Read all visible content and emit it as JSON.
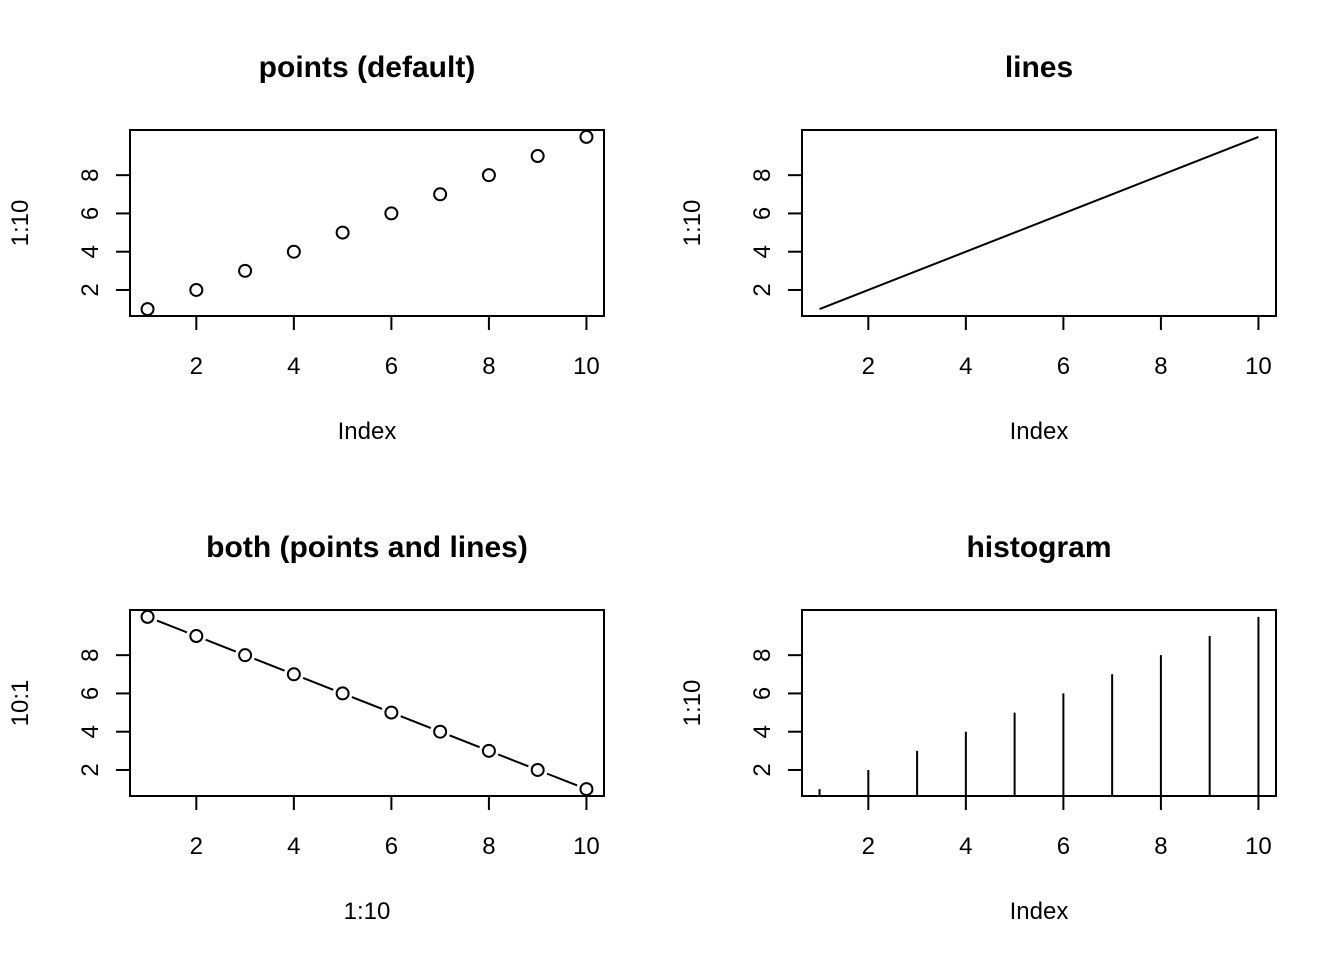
{
  "chart_data": [
    {
      "type": "scatter",
      "title": "points (default)",
      "xlabel": "Index",
      "ylabel": "1:10",
      "x": [
        1,
        2,
        3,
        4,
        5,
        6,
        7,
        8,
        9,
        10
      ],
      "y": [
        1,
        2,
        3,
        4,
        5,
        6,
        7,
        8,
        9,
        10
      ],
      "xlim": [
        0.64,
        10.36
      ],
      "ylim": [
        0.64,
        10.36
      ],
      "xticks": [
        2,
        4,
        6,
        8,
        10
      ],
      "yticks": [
        2,
        4,
        6,
        8
      ],
      "style": "points",
      "grid": false
    },
    {
      "type": "line",
      "title": "lines",
      "xlabel": "Index",
      "ylabel": "1:10",
      "x": [
        1,
        2,
        3,
        4,
        5,
        6,
        7,
        8,
        9,
        10
      ],
      "y": [
        1,
        2,
        3,
        4,
        5,
        6,
        7,
        8,
        9,
        10
      ],
      "xlim": [
        0.64,
        10.36
      ],
      "ylim": [
        0.64,
        10.36
      ],
      "xticks": [
        2,
        4,
        6,
        8,
        10
      ],
      "yticks": [
        2,
        4,
        6,
        8
      ],
      "style": "lines",
      "grid": false
    },
    {
      "type": "line",
      "title": "both (points and lines)",
      "xlabel": "1:10",
      "ylabel": "10:1",
      "x": [
        1,
        2,
        3,
        4,
        5,
        6,
        7,
        8,
        9,
        10
      ],
      "y": [
        10,
        9,
        8,
        7,
        6,
        5,
        4,
        3,
        2,
        1
      ],
      "xlim": [
        0.64,
        10.36
      ],
      "ylim": [
        0.64,
        10.36
      ],
      "xticks": [
        2,
        4,
        6,
        8,
        10
      ],
      "yticks": [
        2,
        4,
        6,
        8
      ],
      "style": "both",
      "grid": false
    },
    {
      "type": "bar",
      "title": "histogram",
      "xlabel": "Index",
      "ylabel": "1:10",
      "x": [
        1,
        2,
        3,
        4,
        5,
        6,
        7,
        8,
        9,
        10
      ],
      "y": [
        1,
        2,
        3,
        4,
        5,
        6,
        7,
        8,
        9,
        10
      ],
      "xlim": [
        0.64,
        10.36
      ],
      "ylim": [
        0.64,
        10.36
      ],
      "xticks": [
        2,
        4,
        6,
        8,
        10
      ],
      "yticks": [
        2,
        4,
        6,
        8
      ],
      "style": "histogram",
      "grid": false
    }
  ]
}
